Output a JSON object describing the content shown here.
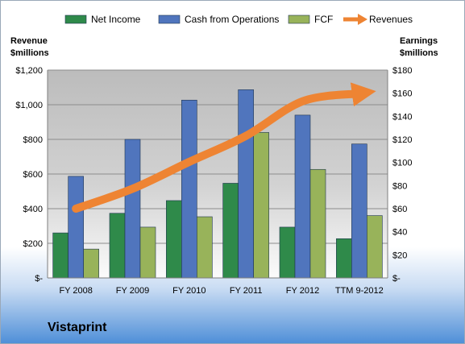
{
  "company_label": "Vistaprint",
  "chart_data": {
    "type": "bar",
    "categories": [
      "FY 2008",
      "FY 2009",
      "FY 2010",
      "FY 2011",
      "FY 2012",
      "TTM 9-2012"
    ],
    "left_axis": {
      "title_line1": "Revenue",
      "title_line2": "$millions",
      "ylim": [
        0,
        1200
      ],
      "tick_values": [
        0,
        200,
        400,
        600,
        800,
        1000,
        1200
      ],
      "tick_labels": [
        "$-",
        "$200",
        "$400",
        "$600",
        "$800",
        "$1,000",
        "$1,200"
      ]
    },
    "right_axis": {
      "title_line1": "Earnings",
      "title_line2": "$millions",
      "ylim": [
        0,
        180
      ],
      "tick_values": [
        0,
        20,
        40,
        60,
        80,
        100,
        120,
        140,
        160,
        180
      ],
      "tick_labels": [
        "$-",
        "$20",
        "$40",
        "$60",
        "$80",
        "$100",
        "$120",
        "$140",
        "$160",
        "$180"
      ]
    },
    "series": [
      {
        "name": "Net Income",
        "type": "bar",
        "axis": "right",
        "color": "#2f8a4a",
        "values": [
          39,
          56,
          67,
          82,
          44,
          34
        ]
      },
      {
        "name": "Cash from Operations",
        "type": "bar",
        "axis": "right",
        "color": "#5075bd",
        "values": [
          88,
          120,
          154,
          163,
          141,
          116
        ]
      },
      {
        "name": "FCF",
        "type": "bar",
        "axis": "right",
        "color": "#98b35a",
        "values": [
          25,
          44,
          53,
          126,
          94,
          54
        ]
      },
      {
        "name": "Revenues",
        "type": "line",
        "axis": "left",
        "color": "#ee8433",
        "values": [
          400,
          515,
          670,
          820,
          1020,
          1065
        ]
      }
    ],
    "grid": true,
    "legend_position": "top"
  }
}
